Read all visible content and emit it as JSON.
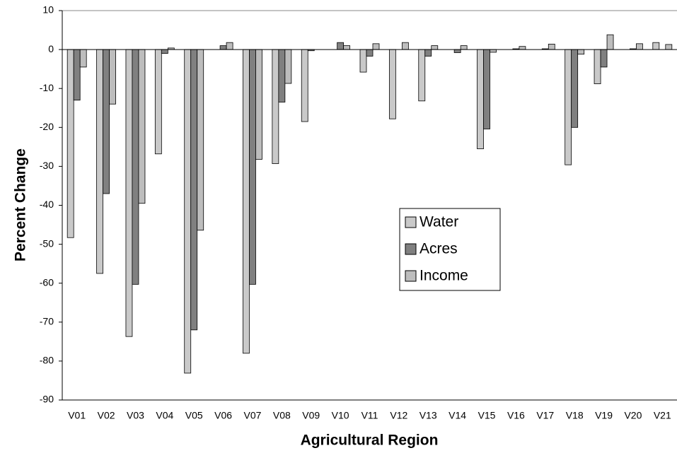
{
  "chart_data": {
    "type": "bar",
    "x_label": "Agricultural Region",
    "y_label": "Percent Change",
    "categories": [
      "V01",
      "V02",
      "V03",
      "V04",
      "V05",
      "V06",
      "V07",
      "V08",
      "V09",
      "V10",
      "V11",
      "V12",
      "V13",
      "V14",
      "V15",
      "V16",
      "V17",
      "V18",
      "V19",
      "V20",
      "V21"
    ],
    "series": [
      {
        "name": "Water",
        "color": "#c9c9c9",
        "values": [
          -48.3,
          -57.5,
          -73.7,
          -26.8,
          -83.1,
          0,
          -78,
          -29.3,
          -18.5,
          0,
          -5.8,
          -17.8,
          -13.2,
          0,
          -25.5,
          0,
          0,
          -29.6,
          -8.8,
          0,
          1.8
        ]
      },
      {
        "name": "Acres",
        "color": "#808080",
        "values": [
          -13,
          -37,
          -60.3,
          -1,
          -72,
          1,
          -60.3,
          -13.5,
          -0.3,
          1.8,
          -1.7,
          0,
          -1.7,
          -0.8,
          -20.4,
          0.2,
          0.2,
          -20,
          -4.5,
          0.2,
          0
        ]
      },
      {
        "name": "Income",
        "color": "#bdbdbd",
        "values": [
          -4.5,
          -14,
          -39.5,
          0.4,
          -46.4,
          1.8,
          -28.2,
          -8.7,
          0,
          1,
          1.5,
          1.8,
          1,
          1,
          -0.7,
          0.8,
          1.4,
          -1.2,
          3.8,
          1.5,
          1.3
        ]
      }
    ],
    "ylim": [
      -90,
      10
    ],
    "yticks": [
      -90,
      -80,
      -70,
      -60,
      -50,
      -40,
      -30,
      -20,
      -10,
      0,
      10
    ],
    "grid": false,
    "legend_position": "center"
  }
}
